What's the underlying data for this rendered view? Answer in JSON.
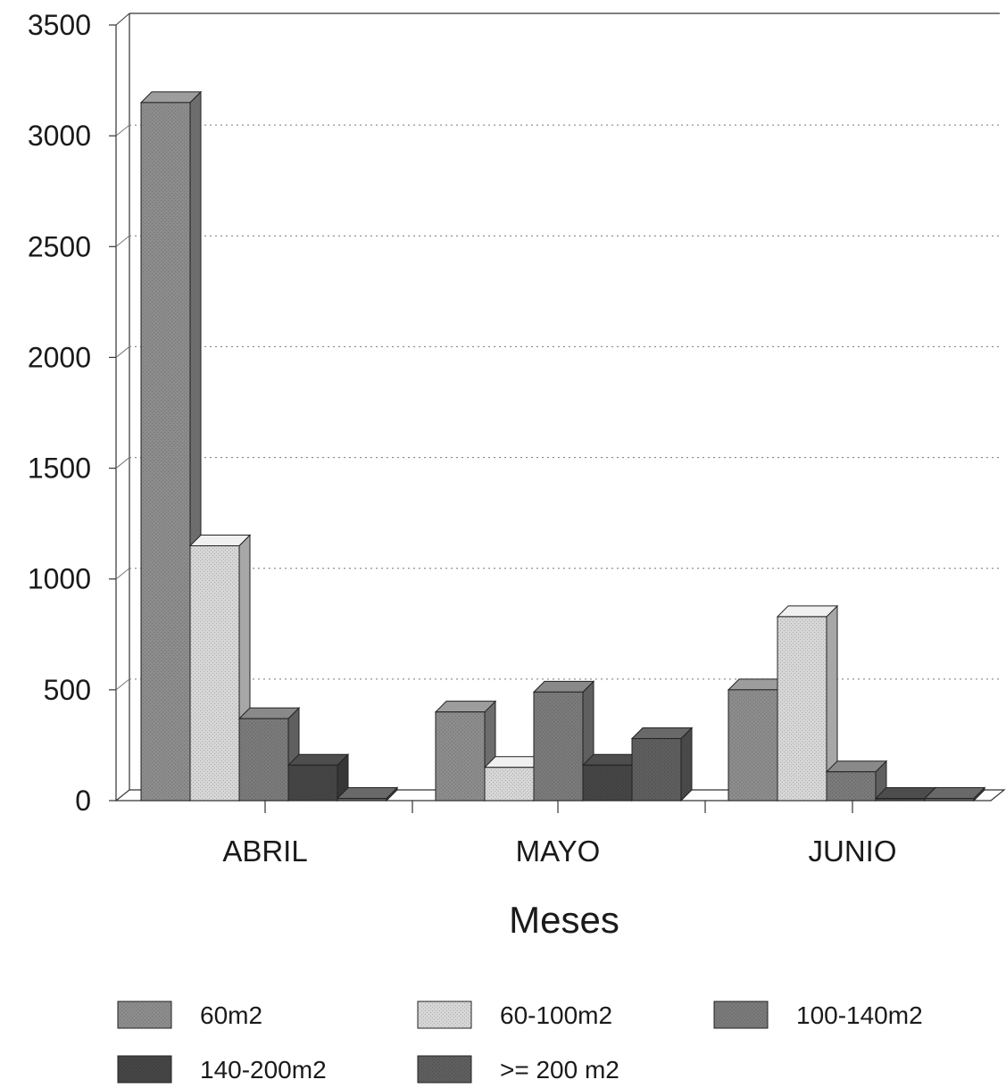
{
  "chart_data": {
    "type": "bar",
    "three_d": true,
    "categories": [
      "ABRIL",
      "MAYO",
      "JUNIO"
    ],
    "xlabel": "Meses",
    "ylabel": "",
    "title": "",
    "ylim": [
      0,
      3500
    ],
    "yticks": [
      0,
      500,
      1000,
      1500,
      2000,
      2500,
      3000,
      3500
    ],
    "grid": "horizontal-dotted",
    "legend_position": "bottom",
    "series": [
      {
        "name": "60m2",
        "values": [
          3150,
          400,
          500
        ],
        "color": "#8c8c8c"
      },
      {
        "name": "60-100m2",
        "values": [
          1150,
          150,
          830
        ],
        "color": "#d6d6d6"
      },
      {
        "name": "100-140m2",
        "values": [
          370,
          490,
          130
        ],
        "color": "#7a7a7a"
      },
      {
        "name": "140-200m2",
        "values": [
          160,
          160,
          10
        ],
        "color": "#454545"
      },
      {
        "name": ">= 200 m2",
        "values": [
          10,
          280,
          10
        ],
        "color": "#5e5e5e"
      }
    ]
  }
}
